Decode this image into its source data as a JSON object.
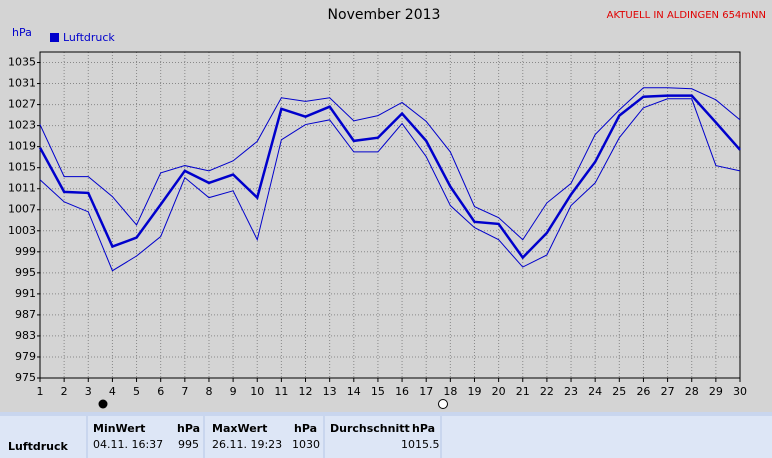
{
  "chart_data": {
    "type": "line",
    "title": "November 2013",
    "annotation": "AKTUELL IN ALDINGEN 654mNN",
    "y_label": "hPa",
    "x": [
      1,
      2,
      3,
      4,
      5,
      6,
      7,
      8,
      9,
      10,
      11,
      12,
      13,
      14,
      15,
      16,
      17,
      18,
      19,
      20,
      21,
      22,
      23,
      24,
      25,
      26,
      27,
      28,
      29,
      30
    ],
    "series": [
      {
        "name": "Luftdruck",
        "color": "#0000cc",
        "values": [
          1018.8,
          1010.4,
          1010.2,
          1000,
          1001.7,
          1008,
          1014.4,
          1012.1,
          1013.7,
          1009.3,
          1026.2,
          1024.7,
          1026.6,
          1020.1,
          1020.7,
          1025.3,
          1020.1,
          1011.4,
          1004.7,
          1004.3,
          997.9,
          1002.6,
          1009.9,
          1016.1,
          1024.9,
          1028.5,
          1028.7,
          1028.7,
          1023.6,
          1018.4
        ]
      },
      {
        "color": "#0000cc",
        "values": [
          1023.2,
          1013.3,
          1013.3,
          1009.5,
          1004.1,
          1014,
          1015.4,
          1014.4,
          1016.3,
          1020,
          1028.3,
          1027.6,
          1028.3,
          1023.9,
          1024.9,
          1027.4,
          1023.8,
          1018,
          1007.6,
          1005.5,
          1001.3,
          1008.3,
          1012,
          1021.3,
          1026,
          1030.2,
          1030.2,
          1030,
          1027.9,
          1024.1
        ]
      },
      {
        "color": "#0000cc",
        "values": [
          1012.7,
          1008.5,
          1006.6,
          995.4,
          998.2,
          1001.9,
          1013.1,
          1009.3,
          1010.6,
          1001.3,
          1020.3,
          1023.2,
          1024.1,
          1018,
          1018,
          1023.4,
          1017.1,
          1007.8,
          1003.6,
          1001.3,
          996.1,
          998.4,
          1007.8,
          1012.1,
          1020.7,
          1026.4,
          1028.1,
          1028.1,
          1015.4,
          1014.4
        ]
      }
    ],
    "xlim": [
      1,
      30
    ],
    "xticks": [
      1,
      2,
      3,
      4,
      5,
      6,
      7,
      8,
      9,
      10,
      11,
      12,
      13,
      14,
      15,
      16,
      17,
      18,
      19,
      20,
      21,
      22,
      23,
      24,
      25,
      26,
      27,
      28,
      29,
      30
    ],
    "ylim": [
      975,
      1037
    ],
    "yticks": [
      975,
      979,
      983,
      987,
      991,
      995,
      999,
      1003,
      1007,
      1011,
      1015,
      1019,
      1023,
      1027,
      1031,
      1035
    ],
    "grid": true
  },
  "table": {
    "row_label": "Luftdruck",
    "columns": [
      {
        "name": "MinWert",
        "unit": "hPa"
      },
      {
        "name": "MaxWert",
        "unit": "hPa"
      },
      {
        "name": "Durchschnitt",
        "unit": "hPa"
      }
    ],
    "min_time": "04.11. 16:37",
    "min_value": "995",
    "max_time": "26.11. 19:23",
    "max_value": "1030",
    "average": "1015.5"
  }
}
